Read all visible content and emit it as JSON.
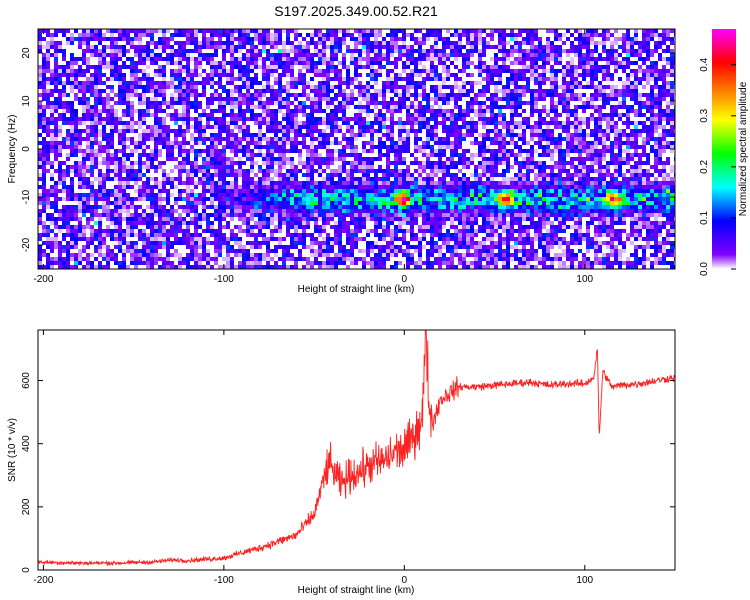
{
  "title": "S197.2025.349.00.52.R21",
  "chart_data": [
    {
      "type": "heatmap",
      "xlabel": "Height of straight line (km)",
      "ylabel": "Frequency (Hz)",
      "xlim": [
        -203,
        150
      ],
      "ylim": [
        -25,
        25
      ],
      "xticks": [
        -200,
        -100,
        0,
        100
      ],
      "yticks": [
        -20,
        -10,
        0,
        10,
        20
      ],
      "colorbar": {
        "label": "Normalized spectral amplitude",
        "range": [
          0.0,
          0.47
        ],
        "ticks": [
          0.0,
          0.1,
          0.2,
          0.3,
          0.4
        ],
        "colormap": [
          "#ffffff",
          "#8000ff",
          "#0000ff",
          "#00ffff",
          "#00ff00",
          "#ffff00",
          "#ff8000",
          "#ff0000",
          "#ff00ff"
        ]
      },
      "features": [
        {
          "description": "Faint noise speckle across full frequency range",
          "amplitude_range": [
            0.0,
            0.08
          ]
        },
        {
          "description": "Signal band near -10 Hz",
          "frequency_hz": -10,
          "x_range": [
            -110,
            150
          ],
          "peak_x": [
            -2,
            55,
            115
          ],
          "peak_amplitude": 0.3
        }
      ]
    },
    {
      "type": "line",
      "xlabel": "Height of straight line (km)",
      "ylabel": "SNR (10 * v/v)",
      "xlim": [
        -203,
        150
      ],
      "ylim": [
        0,
        760
      ],
      "xticks": [
        -200,
        -100,
        0,
        100
      ],
      "yticks": [
        0,
        200,
        400,
        600
      ],
      "color": "#ff2020",
      "series": [
        {
          "x": [
            -203,
            -180,
            -160,
            -140,
            -128,
            -120,
            -100,
            -90,
            -80,
            -70,
            -60,
            -50,
            -45,
            -42,
            -38,
            -35,
            -30,
            -25,
            -20,
            -15,
            -10,
            -5,
            0,
            5,
            10,
            12,
            14,
            16,
            20,
            30,
            40,
            50,
            60,
            70,
            80,
            90,
            100,
            105,
            107,
            108,
            110,
            115,
            120,
            130,
            140,
            150
          ],
          "y": [
            25,
            22,
            22,
            25,
            32,
            30,
            38,
            55,
            70,
            90,
            110,
            175,
            280,
            340,
            300,
            270,
            300,
            310,
            330,
            340,
            350,
            375,
            380,
            420,
            490,
            760,
            500,
            470,
            540,
            580,
            580,
            585,
            590,
            595,
            585,
            590,
            590,
            610,
            700,
            420,
            630,
            580,
            585,
            590,
            600,
            610
          ]
        }
      ],
      "annotations": [
        {
          "x": 12,
          "y": 760,
          "note": "spike near 0 km"
        },
        {
          "x": 108,
          "y": 420,
          "note": "dip at ~108 km"
        }
      ]
    }
  ]
}
